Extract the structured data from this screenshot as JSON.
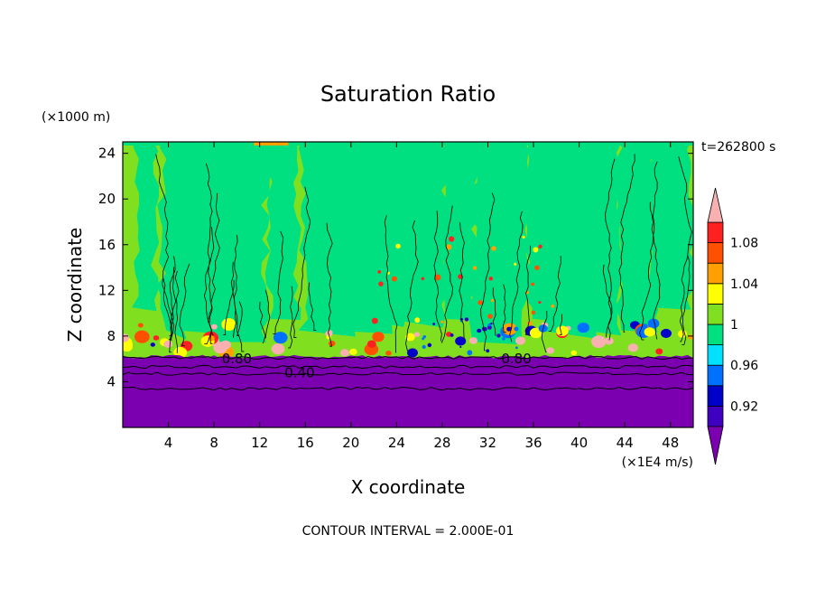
{
  "chart_data": {
    "type": "heatmap",
    "title": "Saturation Ratio",
    "xlabel": "X coordinate",
    "ylabel": "Z coordinate",
    "x_unit": "(×1E4 m/s)",
    "y_unit": "(×1000 m)",
    "time_label": "t=262800 s",
    "contour_interval_label": "CONTOUR INTERVAL = 2.000E-01",
    "xlim": [
      0,
      50
    ],
    "ylim": [
      0,
      25
    ],
    "x_ticks": [
      4,
      8,
      12,
      16,
      20,
      24,
      28,
      32,
      36,
      40,
      44,
      48
    ],
    "x_tick_labels": [
      "4",
      "8",
      "12",
      "16",
      "20",
      "24",
      "28",
      "32",
      "36",
      "40",
      "44",
      "48"
    ],
    "y_ticks": [
      4,
      8,
      12,
      16,
      20,
      24
    ],
    "y_tick_labels": [
      "4",
      "8",
      "12",
      "16",
      "20",
      "24"
    ],
    "contour_labels": [
      {
        "text": "0.80",
        "x": 10,
        "y": 6.0
      },
      {
        "text": "0.40",
        "x": 15.5,
        "y": 4.8
      },
      {
        "text": "0.80",
        "x": 34.5,
        "y": 6.0
      }
    ],
    "colorbar": {
      "tick_labels": [
        "1.08",
        "1.04",
        "1",
        "0.96",
        "0.92"
      ],
      "levels": [
        0.9,
        0.92,
        0.94,
        0.96,
        0.98,
        1.0,
        1.02,
        1.04,
        1.06,
        1.08,
        1.1
      ],
      "colors": [
        "#7a00b0",
        "#4000c0",
        "#0000c8",
        "#0070ff",
        "#00e0ff",
        "#00e080",
        "#80e020",
        "#ffff00",
        "#ffa000",
        "#ff5000",
        "#ff2020",
        "#f8b0b0"
      ],
      "extend": "both"
    },
    "regions": {
      "dry_layer": {
        "z_top": 6.2,
        "color": "#7a00b0"
      },
      "mid_layer": {
        "z_range": [
          6.2,
          25
        ],
        "dominant_colors": [
          "#80e020",
          "#00e080"
        ]
      }
    }
  }
}
